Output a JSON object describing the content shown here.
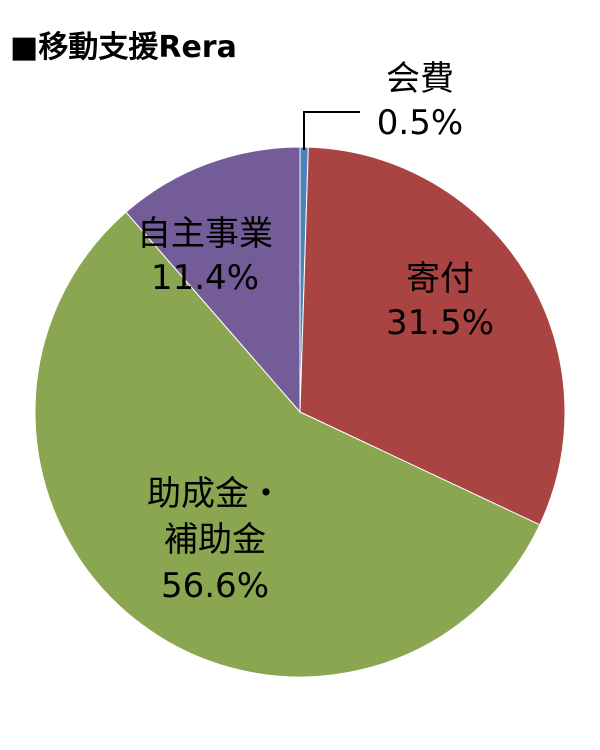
{
  "title": "■移動支援Rera",
  "chart_data": {
    "type": "pie",
    "title": "■移動支援Rera",
    "slices": [
      {
        "label": "会費",
        "value": 0.5,
        "display": "0.5%",
        "color": "#4f81bd",
        "label_lines": [
          "会費"
        ]
      },
      {
        "label": "寄付",
        "value": 31.5,
        "display": "31.5%",
        "color": "#a94442",
        "label_lines": [
          "寄付"
        ]
      },
      {
        "label": "助成金・補助金",
        "value": 56.6,
        "display": "56.6%",
        "color": "#8aa650",
        "label_lines": [
          "助成金・",
          "補助金"
        ]
      },
      {
        "label": "自主事業",
        "value": 11.4,
        "display": "11.4%",
        "color": "#735c98",
        "label_lines": [
          "自主事業"
        ]
      }
    ],
    "legend": "none"
  }
}
